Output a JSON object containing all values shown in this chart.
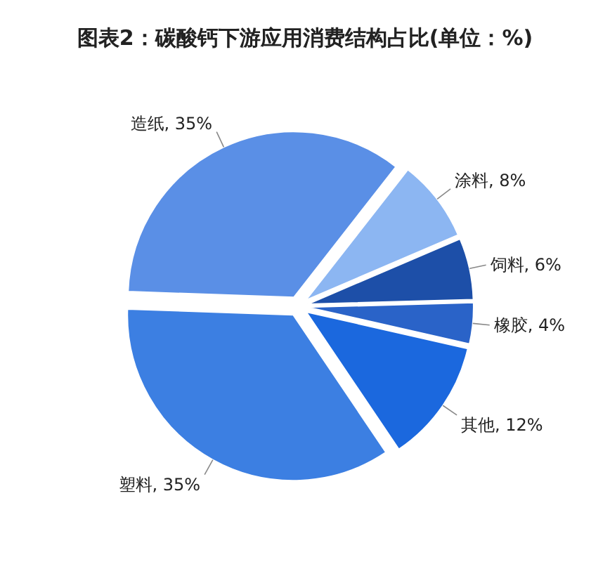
{
  "chart_data": {
    "type": "pie",
    "title": "图表2：碳酸钙下游应用消费结构占比(单位：%)",
    "categories": [
      "造纸",
      "涂料",
      "饲料",
      "橡胶",
      "其他",
      "塑料"
    ],
    "values": [
      35,
      8,
      6,
      4,
      12,
      35
    ],
    "value_labels": [
      "35%",
      "8%",
      "6%",
      "4%",
      "12%",
      "35%"
    ],
    "colors": [
      "#5a8fe6",
      "#8cb6f2",
      "#1d4fa8",
      "#2a63c8",
      "#1b68de",
      "#3c7fe2"
    ]
  }
}
